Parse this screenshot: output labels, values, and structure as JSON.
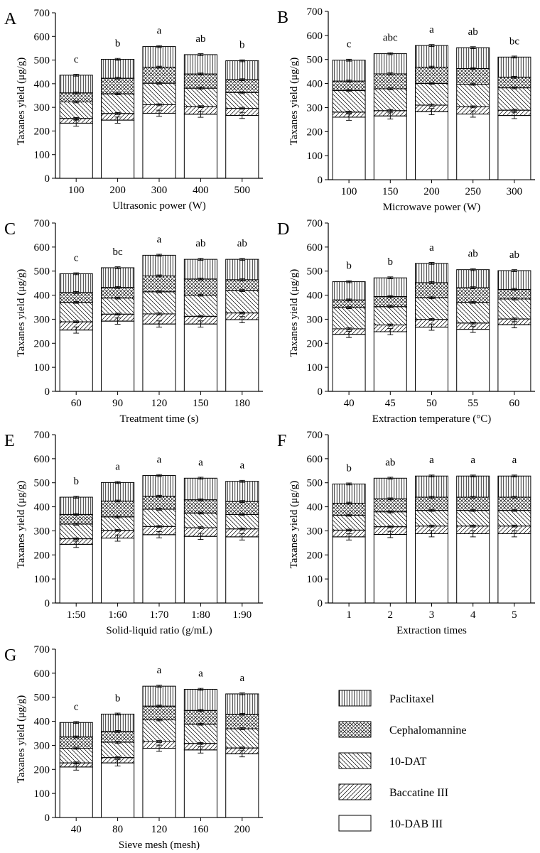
{
  "legend": [
    {
      "key": "paclitaxel",
      "label": "Paclitaxel",
      "pattern": "vertical"
    },
    {
      "key": "cephalomannine",
      "label": "Cephalomannine",
      "pattern": "cross"
    },
    {
      "key": "dat",
      "label": "10-DAT",
      "pattern": "diag-back"
    },
    {
      "key": "baccatine",
      "label": "Baccatine III",
      "pattern": "diag-fwd"
    },
    {
      "key": "dab",
      "label": "10-DAB III",
      "pattern": "none"
    }
  ],
  "chart_data": [
    {
      "type": "bar",
      "panel": "A",
      "stacked": true,
      "title": "",
      "xlabel": "Ultrasonic power (W)",
      "ylabel": "Taxanes yield (μg/g)",
      "ylim": [
        0,
        700
      ],
      "yticks": [
        0,
        100,
        200,
        300,
        400,
        500,
        600,
        700
      ],
      "categories": [
        "100",
        "200",
        "300",
        "400",
        "500"
      ],
      "letters": [
        "c",
        "b",
        "a",
        "ab",
        "b"
      ],
      "series": [
        {
          "name": "10-DAB III",
          "values": [
            233,
            246,
            275,
            271,
            266
          ]
        },
        {
          "name": "Baccatine III",
          "values": [
            20,
            28,
            36,
            32,
            30
          ]
        },
        {
          "name": "10-DAT",
          "values": [
            70,
            83,
            91,
            78,
            66
          ]
        },
        {
          "name": "Cephalomannine",
          "values": [
            38,
            66,
            68,
            60,
            55
          ]
        },
        {
          "name": "Paclitaxel",
          "values": [
            75,
            80,
            87,
            82,
            80
          ]
        }
      ],
      "totals": [
        436,
        503,
        557,
        523,
        497
      ]
    },
    {
      "type": "bar",
      "panel": "B",
      "stacked": true,
      "title": "",
      "xlabel": "Microwave power (W)",
      "ylabel": "Taxanes yield (μg/g)",
      "ylim": [
        0,
        700
      ],
      "yticks": [
        0,
        100,
        200,
        300,
        400,
        500,
        600,
        700
      ],
      "categories": [
        "100",
        "150",
        "200",
        "250",
        "300"
      ],
      "letters": [
        "c",
        "abc",
        "a",
        "ab",
        "bc"
      ],
      "series": [
        {
          "name": "10-DAB III",
          "values": [
            260,
            265,
            283,
            273,
            267
          ]
        },
        {
          "name": "Baccatine III",
          "values": [
            21,
            22,
            27,
            30,
            22
          ]
        },
        {
          "name": "10-DAT",
          "values": [
            90,
            91,
            90,
            94,
            93
          ]
        },
        {
          "name": "Cephalomannine",
          "values": [
            39,
            62,
            68,
            65,
            44
          ]
        },
        {
          "name": "Paclitaxel",
          "values": [
            87,
            84,
            90,
            87,
            84
          ]
        }
      ],
      "totals": [
        497,
        524,
        558,
        549,
        510
      ]
    },
    {
      "type": "bar",
      "panel": "C",
      "stacked": true,
      "title": "",
      "xlabel": "Treatment time (s)",
      "ylabel": "Taxanes yield (μg/g)",
      "ylim": [
        0,
        700
      ],
      "yticks": [
        0,
        100,
        200,
        300,
        400,
        500,
        600,
        700
      ],
      "categories": [
        "60",
        "90",
        "120",
        "150",
        "180"
      ],
      "letters": [
        "c",
        "bc",
        "a",
        "ab",
        "ab"
      ],
      "series": [
        {
          "name": "10-DAB III",
          "values": [
            255,
            292,
            280,
            280,
            298
          ]
        },
        {
          "name": "Baccatine III",
          "values": [
            34,
            29,
            42,
            32,
            28
          ]
        },
        {
          "name": "10-DAT",
          "values": [
            81,
            67,
            92,
            88,
            93
          ]
        },
        {
          "name": "Cephalomannine",
          "values": [
            41,
            44,
            66,
            67,
            45
          ]
        },
        {
          "name": "Paclitaxel",
          "values": [
            78,
            82,
            86,
            82,
            85
          ]
        }
      ],
      "totals": [
        489,
        514,
        566,
        549,
        549
      ]
    },
    {
      "type": "bar",
      "panel": "D",
      "stacked": true,
      "title": "",
      "xlabel": "Extraction temperature (°C)",
      "ylabel": "Taxanes yield (μg/g)",
      "ylim": [
        0,
        700
      ],
      "yticks": [
        0,
        100,
        200,
        300,
        400,
        500,
        600,
        700
      ],
      "categories": [
        "40",
        "45",
        "50",
        "55",
        "60"
      ],
      "letters": [
        "b",
        "b",
        "a",
        "ab",
        "ab"
      ],
      "series": [
        {
          "name": "10-DAB III",
          "values": [
            237,
            248,
            267,
            258,
            277
          ]
        },
        {
          "name": "Baccatine III",
          "values": [
            23,
            28,
            32,
            26,
            24
          ]
        },
        {
          "name": "10-DAT",
          "values": [
            88,
            76,
            90,
            86,
            83
          ]
        },
        {
          "name": "Cephalomannine",
          "values": [
            32,
            42,
            63,
            61,
            40
          ]
        },
        {
          "name": "Paclitaxel",
          "values": [
            76,
            78,
            80,
            75,
            78
          ]
        }
      ],
      "totals": [
        456,
        472,
        532,
        506,
        502
      ]
    },
    {
      "type": "bar",
      "panel": "E",
      "stacked": true,
      "title": "",
      "xlabel": "Solid-liquid ratio  (g/mL)",
      "ylabel": "Taxanes yield (μg/g)",
      "ylim": [
        0,
        700
      ],
      "yticks": [
        0,
        100,
        200,
        300,
        400,
        500,
        600,
        700
      ],
      "categories": [
        "1:50",
        "1:60",
        "1:70",
        "1:80",
        "1:90"
      ],
      "letters": [
        "b",
        "a",
        "a",
        "a",
        "a"
      ],
      "series": [
        {
          "name": "10-DAB III",
          "values": [
            244,
            270,
            284,
            277,
            275
          ]
        },
        {
          "name": "Baccatine III",
          "values": [
            23,
            32,
            34,
            36,
            33
          ]
        },
        {
          "name": "10-DAT",
          "values": [
            61,
            56,
            72,
            61,
            60
          ]
        },
        {
          "name": "Cephalomannine",
          "values": [
            40,
            66,
            54,
            55,
            54
          ]
        },
        {
          "name": "Paclitaxel",
          "values": [
            72,
            77,
            86,
            90,
            84
          ]
        }
      ],
      "totals": [
        440,
        501,
        530,
        519,
        506
      ]
    },
    {
      "type": "bar",
      "panel": "F",
      "stacked": true,
      "title": "",
      "xlabel": "Extraction times",
      "ylabel": "Taxanes yield (μg/g)",
      "ylim": [
        0,
        700
      ],
      "yticks": [
        0,
        100,
        200,
        300,
        400,
        500,
        600,
        700
      ],
      "categories": [
        "1",
        "2",
        "3",
        "4",
        "5"
      ],
      "letters": [
        "b",
        "ab",
        "a",
        "a",
        "a"
      ],
      "series": [
        {
          "name": "10-DAB III",
          "values": [
            275,
            285,
            288,
            288,
            288
          ]
        },
        {
          "name": "Baccatine III",
          "values": [
            28,
            32,
            32,
            32,
            32
          ]
        },
        {
          "name": "10-DAT",
          "values": [
            62,
            62,
            65,
            65,
            65
          ]
        },
        {
          "name": "Cephalomannine",
          "values": [
            50,
            54,
            55,
            55,
            55
          ]
        },
        {
          "name": "Paclitaxel",
          "values": [
            80,
            86,
            88,
            88,
            88
          ]
        }
      ],
      "totals": [
        495,
        519,
        528,
        528,
        528
      ]
    },
    {
      "type": "bar",
      "panel": "G",
      "stacked": true,
      "title": "",
      "xlabel": "Sieve mesh (mesh)",
      "ylabel": "Taxanes yield (μg/g)",
      "ylim": [
        0,
        700
      ],
      "yticks": [
        0,
        100,
        200,
        300,
        400,
        500,
        600,
        700
      ],
      "categories": [
        "40",
        "80",
        "120",
        "160",
        "200"
      ],
      "letters": [
        "c",
        "b",
        "a",
        "a",
        "a"
      ],
      "series": [
        {
          "name": "10-DAB III",
          "values": [
            210,
            227,
            288,
            281,
            265
          ]
        },
        {
          "name": "Baccatine III",
          "values": [
            17,
            22,
            28,
            27,
            24
          ]
        },
        {
          "name": "10-DAT",
          "values": [
            61,
            64,
            90,
            80,
            80
          ]
        },
        {
          "name": "Cephalomannine",
          "values": [
            47,
            45,
            57,
            57,
            60
          ]
        },
        {
          "name": "Paclitaxel",
          "values": [
            60,
            72,
            83,
            88,
            85
          ]
        }
      ],
      "totals": [
        395,
        430,
        546,
        533,
        514
      ]
    }
  ]
}
